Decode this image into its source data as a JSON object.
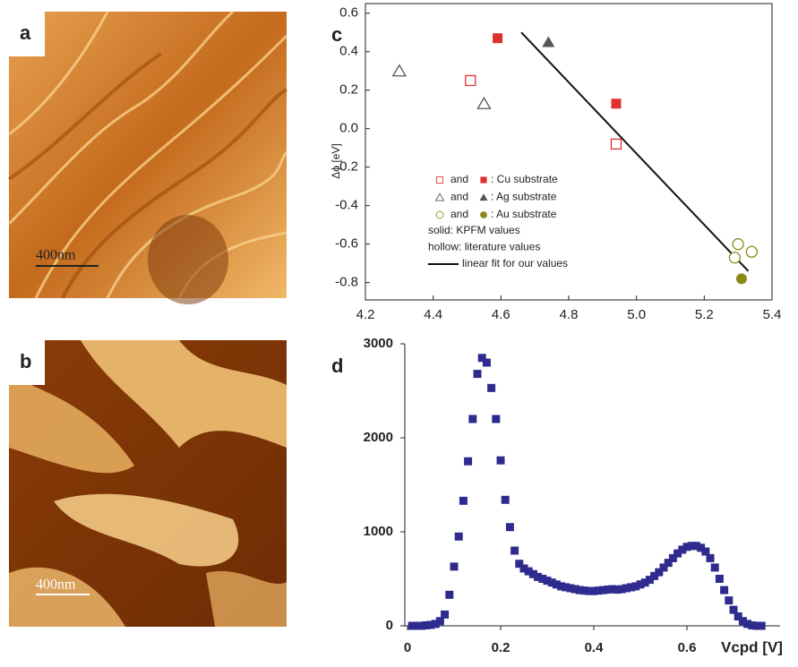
{
  "panels": {
    "a": {
      "label": "a",
      "scale_bar": "400nm"
    },
    "b": {
      "label": "b",
      "scale_bar": "400nm"
    }
  },
  "chart_data": [
    {
      "type": "scatter",
      "panel": "c",
      "y_label": "Δϕ [eV]",
      "xlim": [
        4.2,
        5.4
      ],
      "xticks": [
        4.2,
        4.4,
        4.6,
        4.8,
        {
          "value": 5,
          "label": "5.0"
        },
        5.2,
        5.4
      ],
      "ylim": [
        -0.89,
        0.65
      ],
      "yticks": [
        0.6,
        0.4,
        0.2,
        {
          "value": 0,
          "label": "0.0"
        },
        -0.2,
        -0.4,
        -0.6,
        -0.8
      ],
      "legend_joiner": "and",
      "groups": [
        {
          "name": ": Cu substrate",
          "color": "#e03030",
          "marker": "square",
          "hollow": {
            "x": [
              4.51,
              4.94
            ],
            "y": [
              0.25,
              -0.08
            ]
          },
          "solid": {
            "x": [
              4.59,
              4.94
            ],
            "y": [
              0.47,
              0.13
            ]
          }
        },
        {
          "name": ": Ag substrate",
          "color": "#555555",
          "marker": "triangle",
          "hollow": {
            "x": [
              4.3,
              4.55
            ],
            "y": [
              0.3,
              0.13
            ]
          },
          "solid": {
            "x": [
              4.74
            ],
            "y": [
              0.45
            ]
          }
        },
        {
          "name": ": Au substrate",
          "color": "#8a8a18",
          "marker": "circle",
          "hollow": {
            "x": [
              5.3,
              5.34,
              5.29
            ],
            "y": [
              -0.6,
              -0.64,
              -0.67
            ]
          },
          "solid": {
            "x": [
              5.31
            ],
            "y": [
              -0.78
            ]
          }
        }
      ],
      "notes": [
        "solid: KPFM values",
        "hollow: literature values"
      ],
      "fit": {
        "name": "linear fit for our values",
        "color": "#111111",
        "x": [
          4.66,
          5.33
        ],
        "y": [
          0.5,
          -0.74
        ]
      }
    },
    {
      "type": "histogram-points",
      "panel": "d",
      "x_label": "Vcpd [V]",
      "color": "#2e2a8e",
      "xlim": [
        0,
        0.8
      ],
      "xticks": [
        0,
        0.2,
        0.4,
        0.6
      ],
      "ylim": [
        0,
        3000
      ],
      "yticks": [
        0,
        1000,
        2000,
        3000
      ],
      "x": [
        0.01,
        0.02,
        0.03,
        0.04,
        0.05,
        0.06,
        0.07,
        0.08,
        0.09,
        0.1,
        0.11,
        0.12,
        0.13,
        0.14,
        0.15,
        0.16,
        0.17,
        0.18,
        0.19,
        0.2,
        0.21,
        0.22,
        0.23,
        0.24,
        0.25,
        0.26,
        0.27,
        0.28,
        0.29,
        0.3,
        0.31,
        0.32,
        0.33,
        0.34,
        0.35,
        0.36,
        0.37,
        0.38,
        0.39,
        0.4,
        0.41,
        0.42,
        0.43,
        0.44,
        0.45,
        0.46,
        0.47,
        0.48,
        0.49,
        0.5,
        0.51,
        0.52,
        0.53,
        0.54,
        0.55,
        0.56,
        0.57,
        0.58,
        0.59,
        0.6,
        0.61,
        0.62,
        0.63,
        0.64,
        0.65,
        0.66,
        0.67,
        0.68,
        0.69,
        0.7,
        0.71,
        0.72,
        0.73,
        0.74,
        0.75,
        0.76
      ],
      "values": [
        0,
        0,
        0,
        5,
        10,
        20,
        50,
        120,
        330,
        630,
        950,
        1330,
        1750,
        2200,
        2680,
        2850,
        2800,
        2530,
        2200,
        1760,
        1340,
        1050,
        800,
        660,
        610,
        580,
        550,
        520,
        500,
        480,
        460,
        440,
        420,
        410,
        400,
        390,
        380,
        375,
        370,
        370,
        375,
        380,
        385,
        390,
        385,
        390,
        400,
        410,
        420,
        440,
        460,
        490,
        530,
        570,
        620,
        670,
        720,
        770,
        810,
        840,
        850,
        850,
        830,
        790,
        720,
        620,
        500,
        380,
        270,
        170,
        100,
        50,
        20,
        5,
        0,
        0
      ]
    }
  ]
}
